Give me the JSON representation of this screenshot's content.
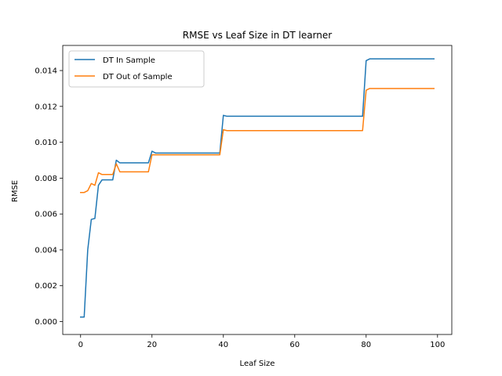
{
  "chart_data": {
    "type": "line",
    "title": "RMSE vs Leaf Size in DT learner",
    "xlabel": "Leaf Size",
    "ylabel": "RMSE",
    "xlim": [
      -5,
      104
    ],
    "ylim": [
      -0.00072,
      0.0154
    ],
    "xticks": [
      0,
      20,
      40,
      60,
      80,
      100
    ],
    "yticks": [
      0.0,
      0.002,
      0.004,
      0.006,
      0.008,
      0.01,
      0.012,
      0.014
    ],
    "xtick_labels": [
      "0",
      "20",
      "40",
      "60",
      "80",
      "100"
    ],
    "ytick_labels": [
      "0.000",
      "0.002",
      "0.004",
      "0.006",
      "0.008",
      "0.010",
      "0.012",
      "0.014"
    ],
    "grid": false,
    "legend_position": "upper-left",
    "series": [
      {
        "name": "DT In Sample",
        "color": "#1f77b4",
        "x": [
          0,
          1,
          2,
          3,
          4,
          5,
          6,
          7,
          8,
          9,
          10,
          11,
          12,
          19,
          20,
          21,
          39,
          40,
          41,
          79,
          80,
          81,
          99
        ],
        "y": [
          0.00025,
          0.00025,
          0.004,
          0.0057,
          0.00575,
          0.0076,
          0.0079,
          0.0079,
          0.0079,
          0.0079,
          0.009,
          0.00885,
          0.00885,
          0.00885,
          0.0095,
          0.0094,
          0.0094,
          0.0115,
          0.01145,
          0.01145,
          0.01455,
          0.01465,
          0.01465
        ]
      },
      {
        "name": "DT Out of Sample",
        "color": "#ff7f0e",
        "x": [
          0,
          1,
          2,
          3,
          4,
          5,
          6,
          7,
          8,
          9,
          10,
          11,
          12,
          19,
          20,
          21,
          39,
          40,
          41,
          79,
          80,
          81,
          99
        ],
        "y": [
          0.0072,
          0.0072,
          0.0073,
          0.0077,
          0.0076,
          0.0083,
          0.0082,
          0.0082,
          0.0082,
          0.0082,
          0.0088,
          0.00835,
          0.00835,
          0.00835,
          0.0093,
          0.0093,
          0.0093,
          0.0107,
          0.01065,
          0.01065,
          0.0129,
          0.013,
          0.013
        ]
      }
    ]
  }
}
